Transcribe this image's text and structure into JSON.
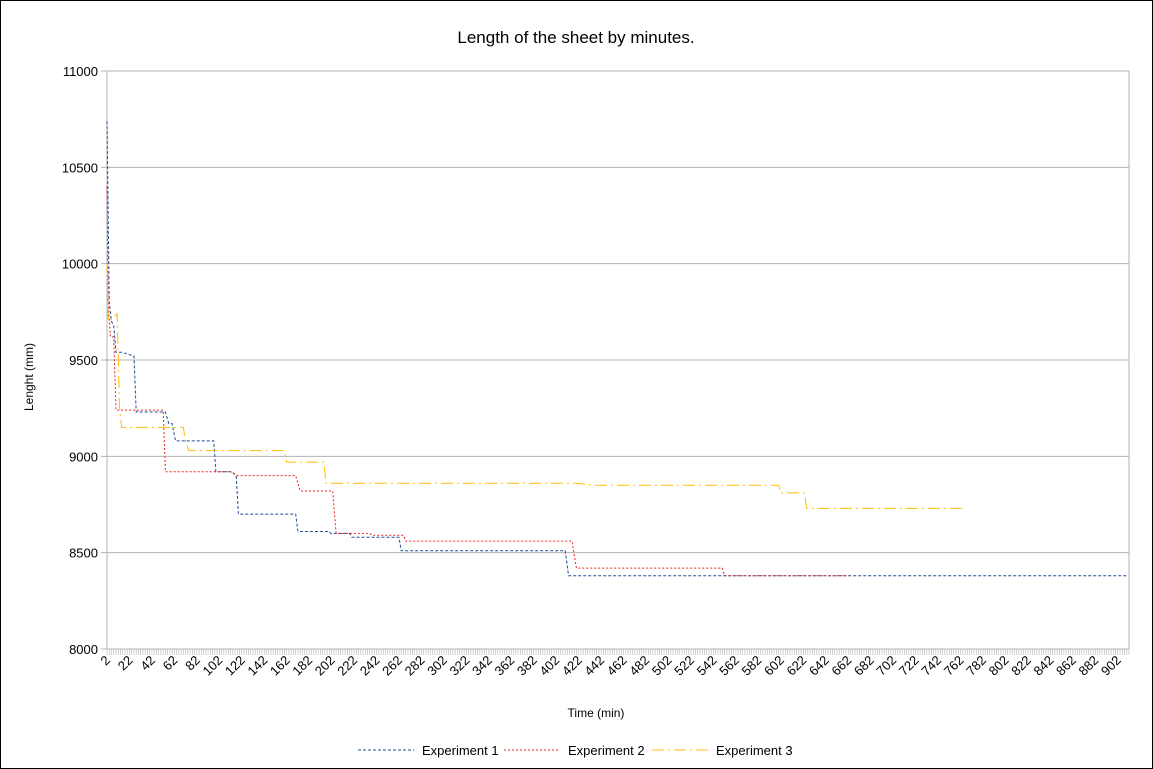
{
  "chart_data": {
    "type": "line",
    "title": "Length of the sheet by minutes.",
    "xlabel": "Time (min)",
    "ylabel": "Lenght (mm)",
    "xlim": [
      2,
      912
    ],
    "ylim": [
      8000,
      11000
    ],
    "y_ticks": [
      8000,
      8500,
      9000,
      9500,
      10000,
      10500,
      11000
    ],
    "x_tick_labels": [
      2,
      22,
      42,
      62,
      82,
      102,
      122,
      142,
      162,
      182,
      202,
      222,
      242,
      262,
      282,
      302,
      322,
      342,
      362,
      382,
      402,
      422,
      442,
      462,
      482,
      502,
      522,
      542,
      562,
      582,
      602,
      622,
      642,
      662,
      682,
      702,
      722,
      742,
      762,
      782,
      802,
      822,
      842,
      862,
      882,
      902
    ],
    "grid": "horizontal",
    "legend_position": "bottom",
    "series": [
      {
        "name": "Experiment 1",
        "color": "#1f4e99",
        "dash": "3,2",
        "x": [
          2,
          3,
          4,
          6,
          8,
          10,
          15,
          21,
          26,
          28,
          54,
          57,
          60,
          63,
          97,
          99,
          113,
          117,
          119,
          170,
          172,
          200,
          201,
          218,
          220,
          262,
          264,
          410,
          413,
          911
        ],
        "y": [
          10740,
          10300,
          9800,
          9700,
          9680,
          9540,
          9540,
          9530,
          9520,
          9230,
          9230,
          9170,
          9170,
          9080,
          9080,
          8920,
          8920,
          8900,
          8700,
          8700,
          8610,
          8610,
          8600,
          8600,
          8580,
          8580,
          8510,
          8510,
          8380,
          8380
        ]
      },
      {
        "name": "Experiment 2",
        "color": "#e8251c",
        "dash": "2,2",
        "x": [
          2,
          3,
          5,
          8,
          10,
          52,
          54,
          60,
          112,
          118,
          170,
          174,
          203,
          206,
          236,
          238,
          266,
          268,
          416,
          420,
          550,
          552,
          663
        ],
        "y": [
          10400,
          9800,
          9620,
          9620,
          9240,
          9240,
          8920,
          8920,
          8920,
          8900,
          8900,
          8820,
          8820,
          8600,
          8600,
          8590,
          8590,
          8560,
          8560,
          8420,
          8420,
          8380,
          8380
        ]
      },
      {
        "name": "Experiment 3",
        "color": "#ffbf00",
        "dash": "12,4,2,4",
        "x": [
          2,
          3,
          8,
          11,
          12,
          13,
          15,
          70,
          72,
          75,
          160,
          162,
          195,
          197,
          420,
          435,
          600,
          602,
          623,
          625,
          765
        ],
        "y": [
          10000,
          9700,
          9720,
          9740,
          9540,
          9260,
          9150,
          9150,
          9070,
          9030,
          9030,
          8970,
          8970,
          8860,
          8860,
          8850,
          8850,
          8810,
          8810,
          8730,
          8730
        ]
      }
    ]
  }
}
